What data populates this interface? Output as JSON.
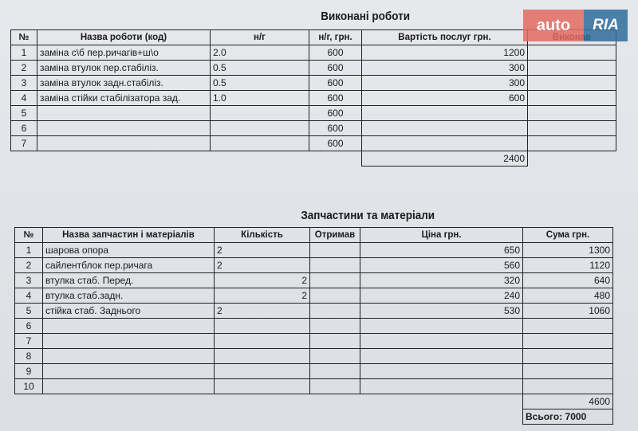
{
  "works": {
    "title": "Виконані роботи",
    "headers": [
      "№",
      "Назва роботи (код)",
      "н/г",
      "н/г, грн.",
      "Вартість послуг грн.",
      "Виконав"
    ],
    "rows": [
      {
        "n": "1",
        "name": "заміна с\\б пер.ричагів+ш\\о",
        "hours": "2.0",
        "rate": "600",
        "cost": "1200"
      },
      {
        "n": "2",
        "name": "заміна втулок пер.стабіліз.",
        "hours": "0.5",
        "rate": "600",
        "cost": "300"
      },
      {
        "n": "3",
        "name": "заміна втулок задн.стабіліз.",
        "hours": "0.5",
        "rate": "600",
        "cost": "300"
      },
      {
        "n": "4",
        "name": "заміна стійки стабілізатора зад.",
        "hours": "1.0",
        "rate": "600",
        "cost": "600"
      },
      {
        "n": "5",
        "name": "",
        "hours": "",
        "rate": "600",
        "cost": ""
      },
      {
        "n": "6",
        "name": "",
        "hours": "",
        "rate": "600",
        "cost": ""
      },
      {
        "n": "7",
        "name": "",
        "hours": "",
        "rate": "600",
        "cost": ""
      }
    ],
    "total": "2400"
  },
  "parts": {
    "title": "Запчастини та матеріали",
    "headers": [
      "№",
      "Назва запчастин і матеріалів",
      "Кількість",
      "Отримав",
      "Ціна грн.",
      "Сума грн."
    ],
    "rows": [
      {
        "n": "1",
        "name": "шарова опора",
        "qty": "2",
        "price": "650",
        "sum": "1300"
      },
      {
        "n": "2",
        "name": "сайлентблок пер.ричага",
        "qty": "2",
        "price": "560",
        "sum": "1120"
      },
      {
        "n": "3",
        "name": "втулка стаб. Перед.",
        "qty": "2",
        "price": "320",
        "sum": "640"
      },
      {
        "n": "4",
        "name": "втулка стаб.задн.",
        "qty": "2",
        "price": "240",
        "sum": "480"
      },
      {
        "n": "5",
        "name": "стійка стаб. Заднього",
        "qty": "2",
        "price": "530",
        "sum": "1060"
      },
      {
        "n": "6",
        "name": "",
        "qty": "",
        "price": "",
        "sum": ""
      },
      {
        "n": "7",
        "name": "",
        "qty": "",
        "price": "",
        "sum": ""
      },
      {
        "n": "8",
        "name": "",
        "qty": "",
        "price": "",
        "sum": ""
      },
      {
        "n": "9",
        "name": "",
        "qty": "",
        "price": "",
        "sum": ""
      },
      {
        "n": "10",
        "name": "",
        "qty": "",
        "price": "",
        "sum": ""
      }
    ],
    "total": "4600",
    "grand_total": "Всього: 7000"
  },
  "watermark": {
    "left": "auto",
    "right": "RIA",
    "colors": {
      "left": "#e36b62",
      "right": "#2f6f9d"
    }
  }
}
